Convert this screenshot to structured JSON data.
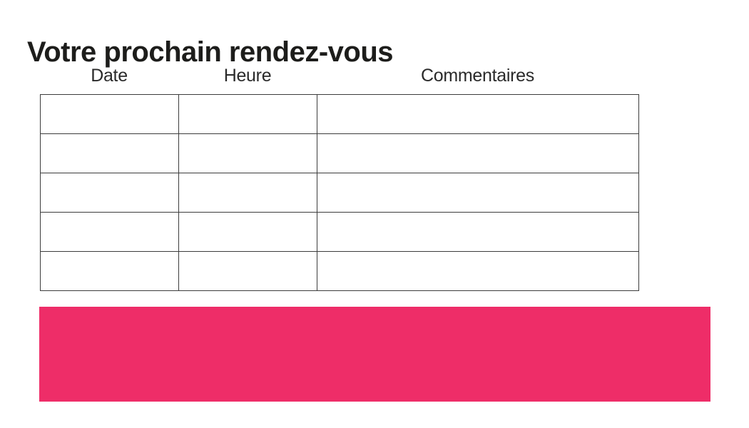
{
  "title": "Votre prochain rendez-vous",
  "table": {
    "headers": [
      "Date",
      "Heure",
      "Commentaires"
    ],
    "rows": [
      [
        "",
        "",
        ""
      ],
      [
        "",
        "",
        ""
      ],
      [
        "",
        "",
        ""
      ],
      [
        "",
        "",
        ""
      ],
      [
        "",
        "",
        ""
      ]
    ]
  },
  "colors": {
    "accent": "#EE2D68",
    "border": "#3C3C3C",
    "title_text": "#1D1D1B",
    "header_text": "#2A2A2A"
  }
}
